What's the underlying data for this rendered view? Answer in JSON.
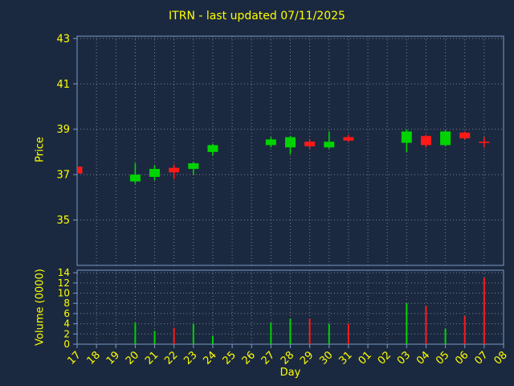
{
  "title": "ITRN - last updated 07/11/2025",
  "colors": {
    "background": "#1b2940",
    "text": "#ffff00",
    "grid": "#c8c8c8",
    "border": "#7a9cc4",
    "up": "#00d400",
    "down": "#ff1a1a"
  },
  "chart_data": {
    "type": "candlestick",
    "title": "ITRN - last updated 07/11/2025",
    "xlabel": "Day",
    "legend": "none",
    "grid": "dotted",
    "categories": [
      "17",
      "18",
      "19",
      "20",
      "21",
      "22",
      "23",
      "24",
      "25",
      "26",
      "27",
      "28",
      "29",
      "30",
      "31",
      "01",
      "02",
      "03",
      "04",
      "05",
      "06",
      "07",
      "08"
    ],
    "price_axis": {
      "label": "Price",
      "ticks": [
        35,
        37,
        39,
        41,
        43
      ],
      "ylim": [
        33.0,
        43.1
      ]
    },
    "volume_axis": {
      "label": "Volume (0000)",
      "ticks": [
        0,
        2,
        4,
        6,
        8,
        10,
        12,
        14
      ],
      "ylim": [
        0,
        14.5
      ]
    },
    "candles": [
      {
        "day": "17",
        "open": 37.35,
        "close": 37.05,
        "high": 37.4,
        "low": 37.0,
        "direction": "down"
      },
      {
        "day": "20",
        "open": 36.7,
        "close": 37.0,
        "high": 37.5,
        "low": 36.6,
        "direction": "up"
      },
      {
        "day": "21",
        "open": 36.9,
        "close": 37.25,
        "high": 37.4,
        "low": 36.75,
        "direction": "up"
      },
      {
        "day": "22",
        "open": 37.3,
        "close": 37.1,
        "high": 37.45,
        "low": 36.8,
        "direction": "down"
      },
      {
        "day": "23",
        "open": 37.25,
        "close": 37.5,
        "high": 37.55,
        "low": 37.0,
        "direction": "up"
      },
      {
        "day": "24",
        "open": 38.0,
        "close": 38.3,
        "high": 38.35,
        "low": 37.85,
        "direction": "up"
      },
      {
        "day": "27",
        "open": 38.3,
        "close": 38.55,
        "high": 38.65,
        "low": 38.2,
        "direction": "up"
      },
      {
        "day": "28",
        "open": 38.2,
        "close": 38.65,
        "high": 38.7,
        "low": 37.9,
        "direction": "up"
      },
      {
        "day": "29",
        "open": 38.45,
        "close": 38.25,
        "high": 38.55,
        "low": 38.15,
        "direction": "down"
      },
      {
        "day": "30",
        "open": 38.2,
        "close": 38.45,
        "high": 38.9,
        "low": 38.15,
        "direction": "up"
      },
      {
        "day": "31",
        "open": 38.65,
        "close": 38.5,
        "high": 38.75,
        "low": 38.45,
        "direction": "down"
      },
      {
        "day": "03",
        "open": 38.4,
        "close": 38.9,
        "high": 39.0,
        "low": 38.0,
        "direction": "up"
      },
      {
        "day": "04",
        "open": 38.7,
        "close": 38.3,
        "high": 38.75,
        "low": 38.2,
        "direction": "down"
      },
      {
        "day": "05",
        "open": 38.3,
        "close": 38.9,
        "high": 38.95,
        "low": 38.25,
        "direction": "up"
      },
      {
        "day": "06",
        "open": 38.85,
        "close": 38.6,
        "high": 38.9,
        "low": 38.55,
        "direction": "down"
      },
      {
        "day": "07",
        "open": 38.45,
        "close": 38.4,
        "high": 38.65,
        "low": 38.2,
        "direction": "down"
      }
    ],
    "volumes": [
      {
        "day": "20",
        "value": 4.2,
        "direction": "up"
      },
      {
        "day": "21",
        "value": 2.6,
        "direction": "up"
      },
      {
        "day": "22",
        "value": 3.2,
        "direction": "down"
      },
      {
        "day": "23",
        "value": 4.0,
        "direction": "up"
      },
      {
        "day": "24",
        "value": 1.6,
        "direction": "up"
      },
      {
        "day": "27",
        "value": 4.2,
        "direction": "up"
      },
      {
        "day": "28",
        "value": 5.0,
        "direction": "up"
      },
      {
        "day": "29",
        "value": 5.0,
        "direction": "down"
      },
      {
        "day": "30",
        "value": 4.0,
        "direction": "up"
      },
      {
        "day": "31",
        "value": 4.0,
        "direction": "down"
      },
      {
        "day": "03",
        "value": 8.0,
        "direction": "up"
      },
      {
        "day": "04",
        "value": 7.5,
        "direction": "down"
      },
      {
        "day": "05",
        "value": 3.0,
        "direction": "up"
      },
      {
        "day": "06",
        "value": 5.5,
        "direction": "down"
      },
      {
        "day": "07",
        "value": 13.0,
        "direction": "down"
      }
    ]
  }
}
